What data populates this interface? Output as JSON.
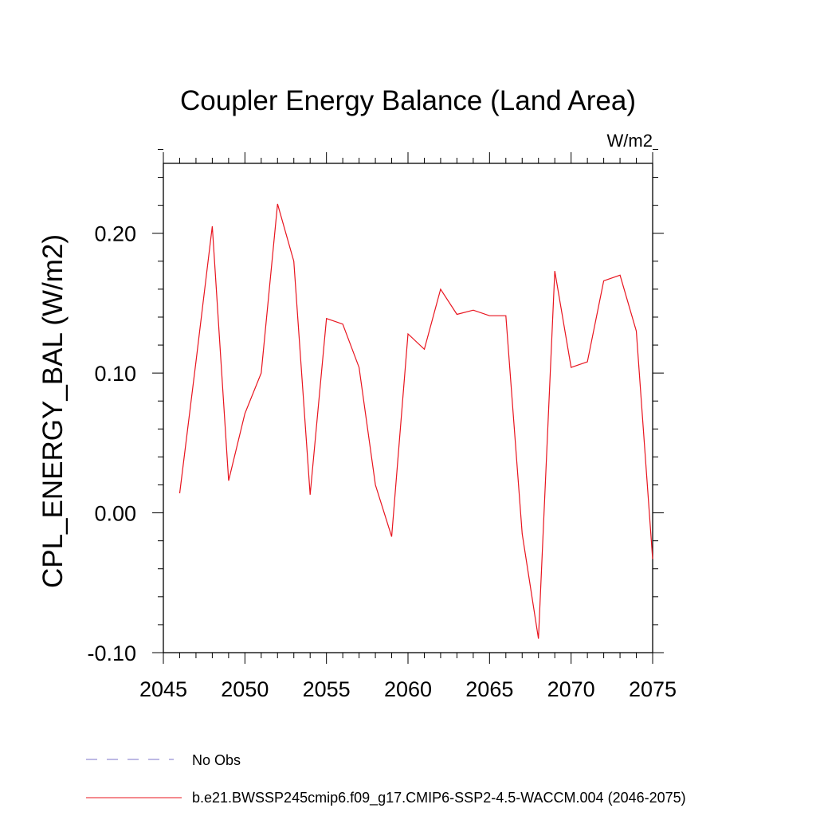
{
  "chart_data": {
    "type": "line",
    "title": "Coupler Energy Balance (Land Area)",
    "units": "W/m2",
    "ylabel": "CPL_ENERGY_BAL  (W/m2)",
    "xlabel": "",
    "xlim": [
      2045,
      2075
    ],
    "ylim": [
      -0.1,
      0.25
    ],
    "x_ticks": [
      2045,
      2050,
      2055,
      2060,
      2065,
      2070,
      2075
    ],
    "x_tick_labels": [
      "2045",
      "2050",
      "2055",
      "2060",
      "2065",
      "2070",
      "2075"
    ],
    "y_ticks": [
      -0.1,
      0.0,
      0.1,
      0.2
    ],
    "y_tick_labels": [
      "-0.10",
      "0.00",
      "0.10",
      "0.20"
    ],
    "series": [
      {
        "name": "b.e21.BWSSP245cmip6.f09_g17.CMIP6-SSP2-4.5-WACCM.004 (2046-2075)",
        "color": "#e8141e",
        "x": [
          2046,
          2047,
          2048,
          2049,
          2050,
          2051,
          2052,
          2053,
          2054,
          2055,
          2056,
          2057,
          2058,
          2059,
          2060,
          2061,
          2062,
          2063,
          2064,
          2065,
          2066,
          2067,
          2068,
          2069,
          2070,
          2071,
          2072,
          2073,
          2074,
          2075
        ],
        "values": [
          0.014,
          0.108,
          0.205,
          0.023,
          0.071,
          0.1,
          0.221,
          0.18,
          0.013,
          0.139,
          0.135,
          0.104,
          0.02,
          -0.017,
          0.128,
          0.117,
          0.16,
          0.142,
          0.145,
          0.141,
          0.141,
          -0.015,
          -0.09,
          0.173,
          0.104,
          0.108,
          0.166,
          0.17,
          0.13,
          -0.033
        ]
      }
    ],
    "legend": [
      {
        "label": "No Obs",
        "style": "dashed",
        "color": "#7b73c8"
      },
      {
        "label": "b.e21.BWSSP245cmip6.f09_g17.CMIP6-SSP2-4.5-WACCM.004 (2046-2075)",
        "style": "solid",
        "color": "#e8141e"
      }
    ]
  }
}
